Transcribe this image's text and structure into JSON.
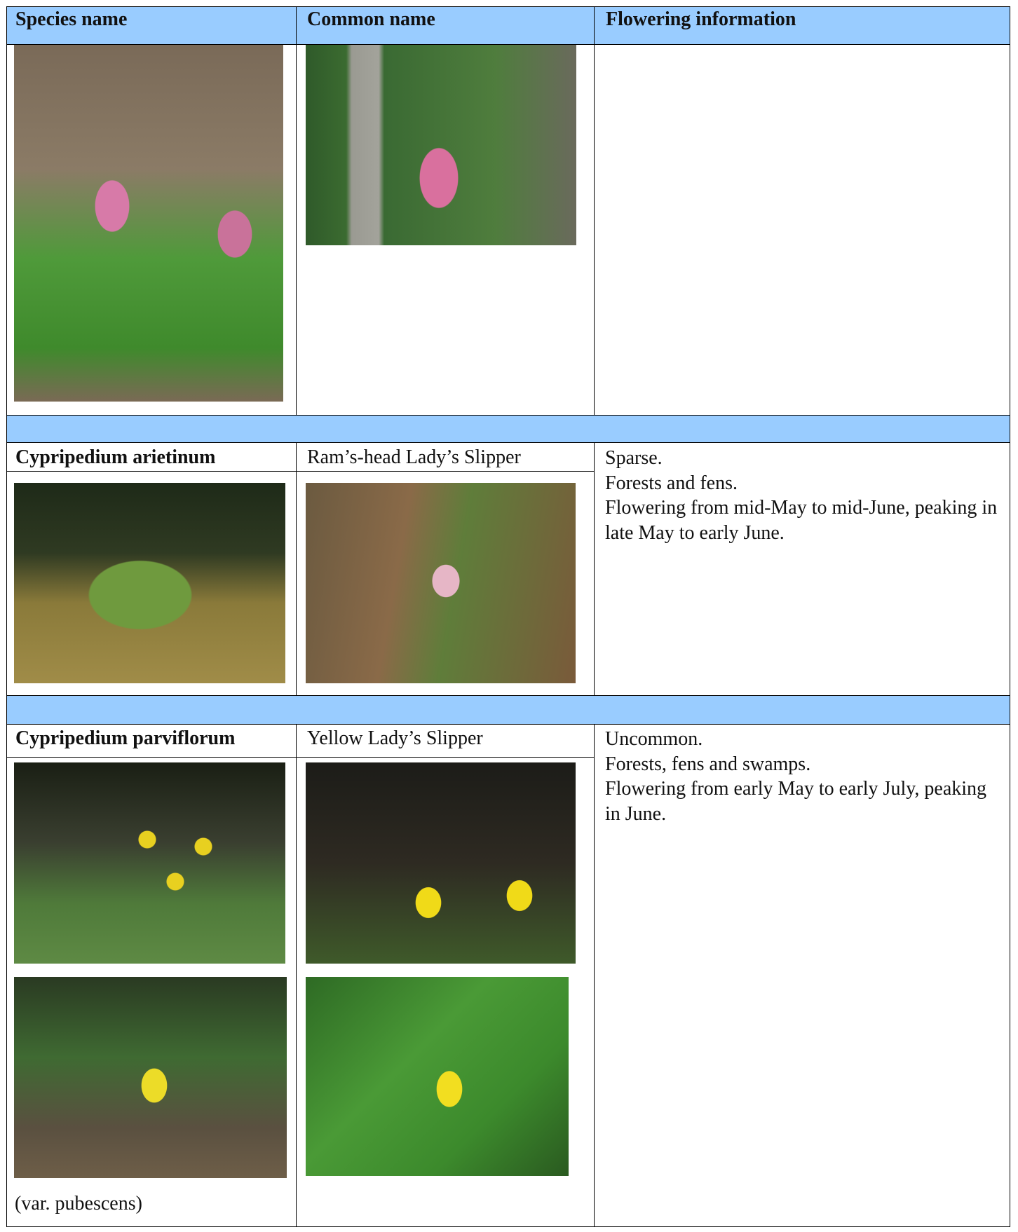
{
  "table": {
    "header": [
      "Species name",
      "Common name",
      "Flowering information"
    ],
    "rows": [
      {
        "species": "Cypripedium arietinum",
        "common": "Ram’s-head Lady’s Slipper",
        "info": [
          "Sparse.",
          "Forests and fens.",
          "Flowering from mid-May to mid-June, peaking in late May to early June."
        ]
      },
      {
        "species": "Cypripedium parviflorum",
        "common": "Yellow Lady’s Slipper",
        "info": [
          "Uncommon.",
          "Forests, fens and swamps.",
          "Flowering from early May to early July, peaking in June."
        ],
        "note": "(var. pubescens)"
      }
    ]
  }
}
